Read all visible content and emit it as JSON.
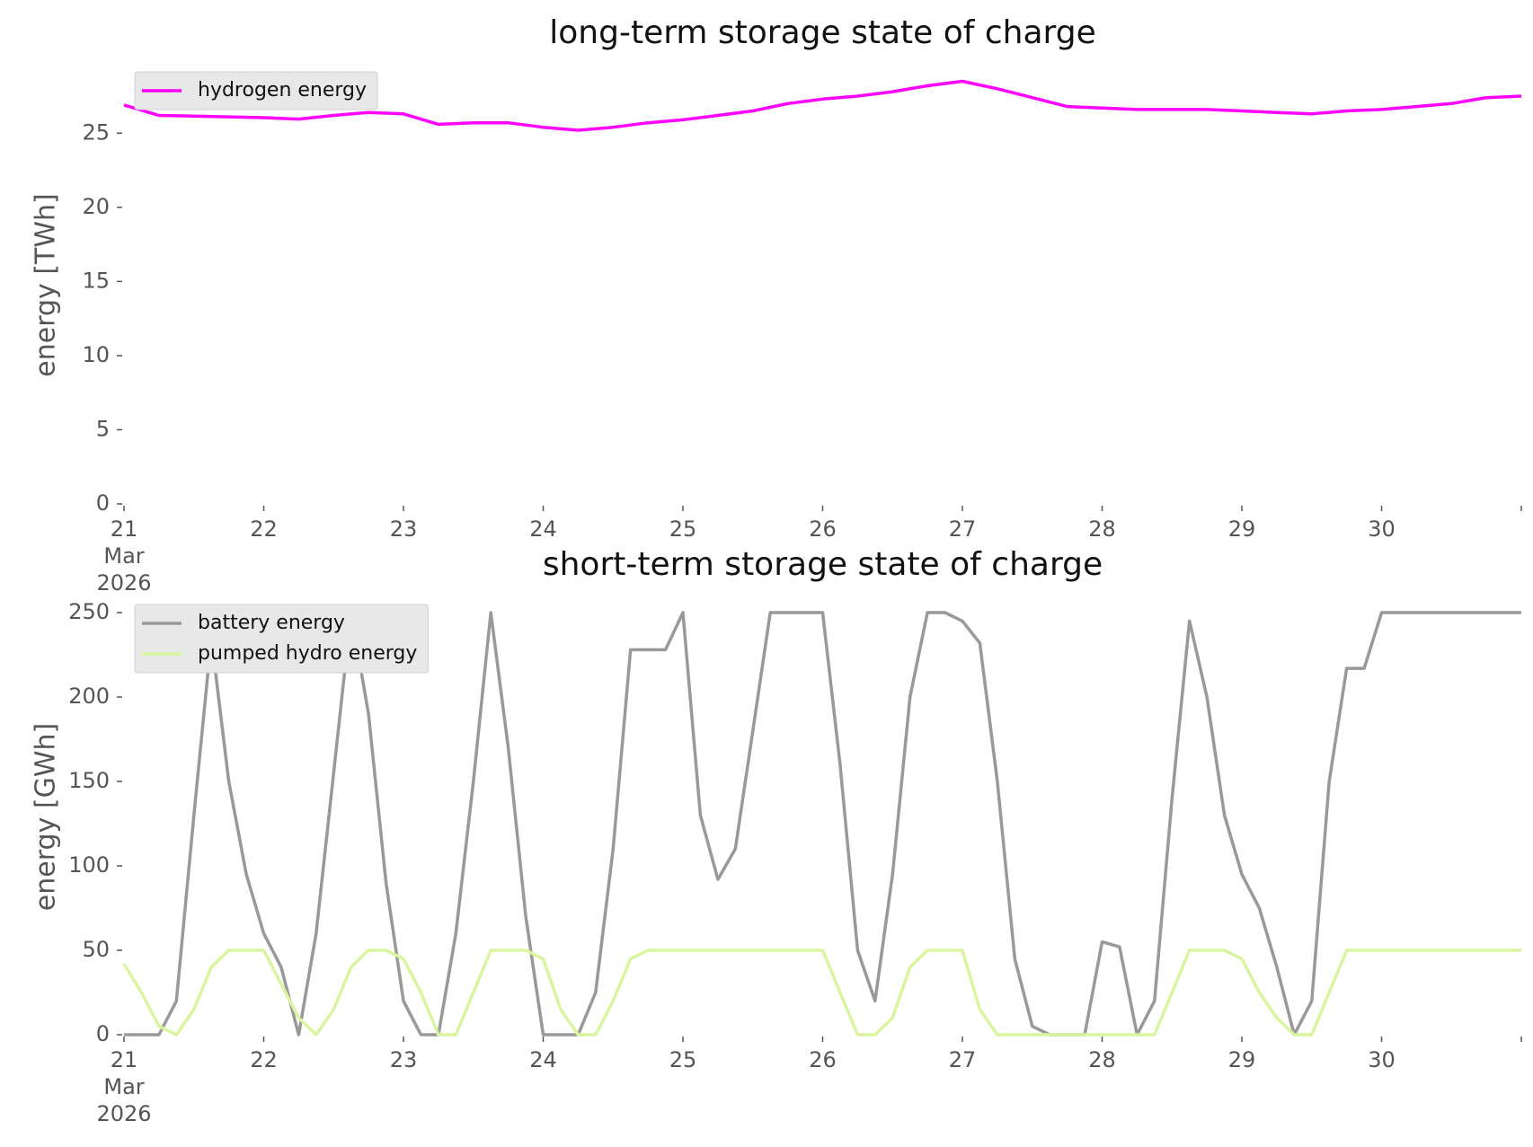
{
  "chart_data": [
    {
      "type": "line",
      "title": "long-term storage state of charge",
      "ylabel": "energy [TWh]",
      "x": [
        21,
        21.25,
        21.5,
        21.75,
        22,
        22.25,
        22.5,
        22.75,
        23,
        23.25,
        23.5,
        23.75,
        24,
        24.25,
        24.5,
        24.75,
        25,
        25.25,
        25.5,
        25.75,
        26,
        26.25,
        26.5,
        26.75,
        27,
        27.25,
        27.5,
        27.75,
        28,
        28.25,
        28.5,
        28.75,
        29,
        29.25,
        29.5,
        29.75,
        30,
        30.25,
        30.5,
        30.75,
        31
      ],
      "series": [
        {
          "name": "hydrogen energy",
          "color": "#ff00ff",
          "values": [
            26.9,
            26.2,
            26.15,
            26.1,
            26.05,
            25.95,
            26.2,
            26.4,
            26.3,
            25.6,
            25.7,
            25.7,
            25.4,
            25.2,
            25.4,
            25.7,
            25.9,
            26.2,
            26.5,
            27.0,
            27.3,
            27.5,
            27.8,
            28.2,
            28.5,
            28.0,
            27.4,
            26.8,
            26.7,
            26.6,
            26.6,
            26.6,
            26.5,
            26.4,
            26.3,
            26.5,
            26.6,
            26.8,
            27.0,
            27.4,
            27.5
          ]
        }
      ],
      "xlim": [
        21,
        31
      ],
      "xticks": [
        {
          "value": 21,
          "label": "21\nMar\n2026"
        },
        22,
        23,
        24,
        25,
        26,
        27,
        28,
        29,
        30,
        {
          "value": 31,
          "label": null
        }
      ],
      "ylim": [
        0,
        29.5
      ],
      "yticks": [
        0,
        5,
        10,
        15,
        20,
        25
      ],
      "legend": "upper left",
      "grid": false
    },
    {
      "type": "line",
      "title": "short-term storage state of charge",
      "ylabel": "energy [GWh]",
      "x": [
        21,
        21.125,
        21.25,
        21.375,
        21.5,
        21.625,
        21.75,
        21.875,
        22,
        22.125,
        22.25,
        22.375,
        22.5,
        22.625,
        22.75,
        22.875,
        23,
        23.125,
        23.25,
        23.375,
        23.5,
        23.625,
        23.75,
        23.875,
        24,
        24.125,
        24.25,
        24.375,
        24.5,
        24.625,
        24.75,
        24.875,
        25,
        25.125,
        25.25,
        25.375,
        25.5,
        25.625,
        25.75,
        25.875,
        26,
        26.125,
        26.25,
        26.375,
        26.5,
        26.625,
        26.75,
        26.875,
        27,
        27.125,
        27.25,
        27.375,
        27.5,
        27.625,
        27.75,
        27.875,
        28,
        28.125,
        28.25,
        28.375,
        28.5,
        28.625,
        28.75,
        28.875,
        29,
        29.125,
        29.25,
        29.375,
        29.5,
        29.625,
        29.75,
        29.875,
        30,
        30.125,
        30.25,
        30.375,
        30.5,
        30.625,
        30.75,
        30.875,
        31
      ],
      "series": [
        {
          "name": "battery energy",
          "color": "#999999",
          "values": [
            0,
            0,
            0,
            20,
            130,
            235,
            150,
            95,
            60,
            40,
            0,
            60,
            155,
            250,
            190,
            90,
            20,
            0,
            0,
            60,
            150,
            250,
            170,
            70,
            0,
            0,
            0,
            25,
            110,
            228,
            228,
            228,
            250,
            130,
            92,
            110,
            180,
            250,
            250,
            250,
            250,
            160,
            50,
            20,
            95,
            200,
            250,
            250,
            245,
            232,
            150,
            45,
            5,
            0,
            0,
            0,
            55,
            52,
            0,
            20,
            140,
            245,
            200,
            130,
            95,
            75,
            40,
            0,
            20,
            150,
            217,
            217,
            250,
            250,
            250,
            250,
            250,
            250,
            250,
            250,
            250
          ]
        },
        {
          "name": "pumped hydro energy",
          "color": "#d9f59e",
          "values": [
            42,
            25,
            5,
            0,
            15,
            40,
            50,
            50,
            50,
            30,
            10,
            0,
            15,
            40,
            50,
            50,
            45,
            25,
            0,
            0,
            25,
            50,
            50,
            50,
            45,
            15,
            0,
            0,
            20,
            45,
            50,
            50,
            50,
            50,
            50,
            50,
            50,
            50,
            50,
            50,
            50,
            25,
            0,
            0,
            10,
            40,
            50,
            50,
            50,
            15,
            0,
            0,
            0,
            0,
            0,
            0,
            0,
            0,
            0,
            0,
            25,
            50,
            50,
            50,
            45,
            25,
            10,
            0,
            0,
            25,
            50,
            50,
            50,
            50,
            50,
            50,
            50,
            50,
            50,
            50,
            50
          ]
        }
      ],
      "xlim": [
        21,
        31
      ],
      "xticks": [
        {
          "value": 21,
          "label": "21\nMar\n2026"
        },
        22,
        23,
        24,
        25,
        26,
        27,
        28,
        29,
        30,
        {
          "value": 31,
          "label": null
        }
      ],
      "ylim": [
        0,
        258
      ],
      "yticks": [
        0,
        50,
        100,
        150,
        200,
        250
      ],
      "legend": "upper left",
      "grid": false
    }
  ]
}
